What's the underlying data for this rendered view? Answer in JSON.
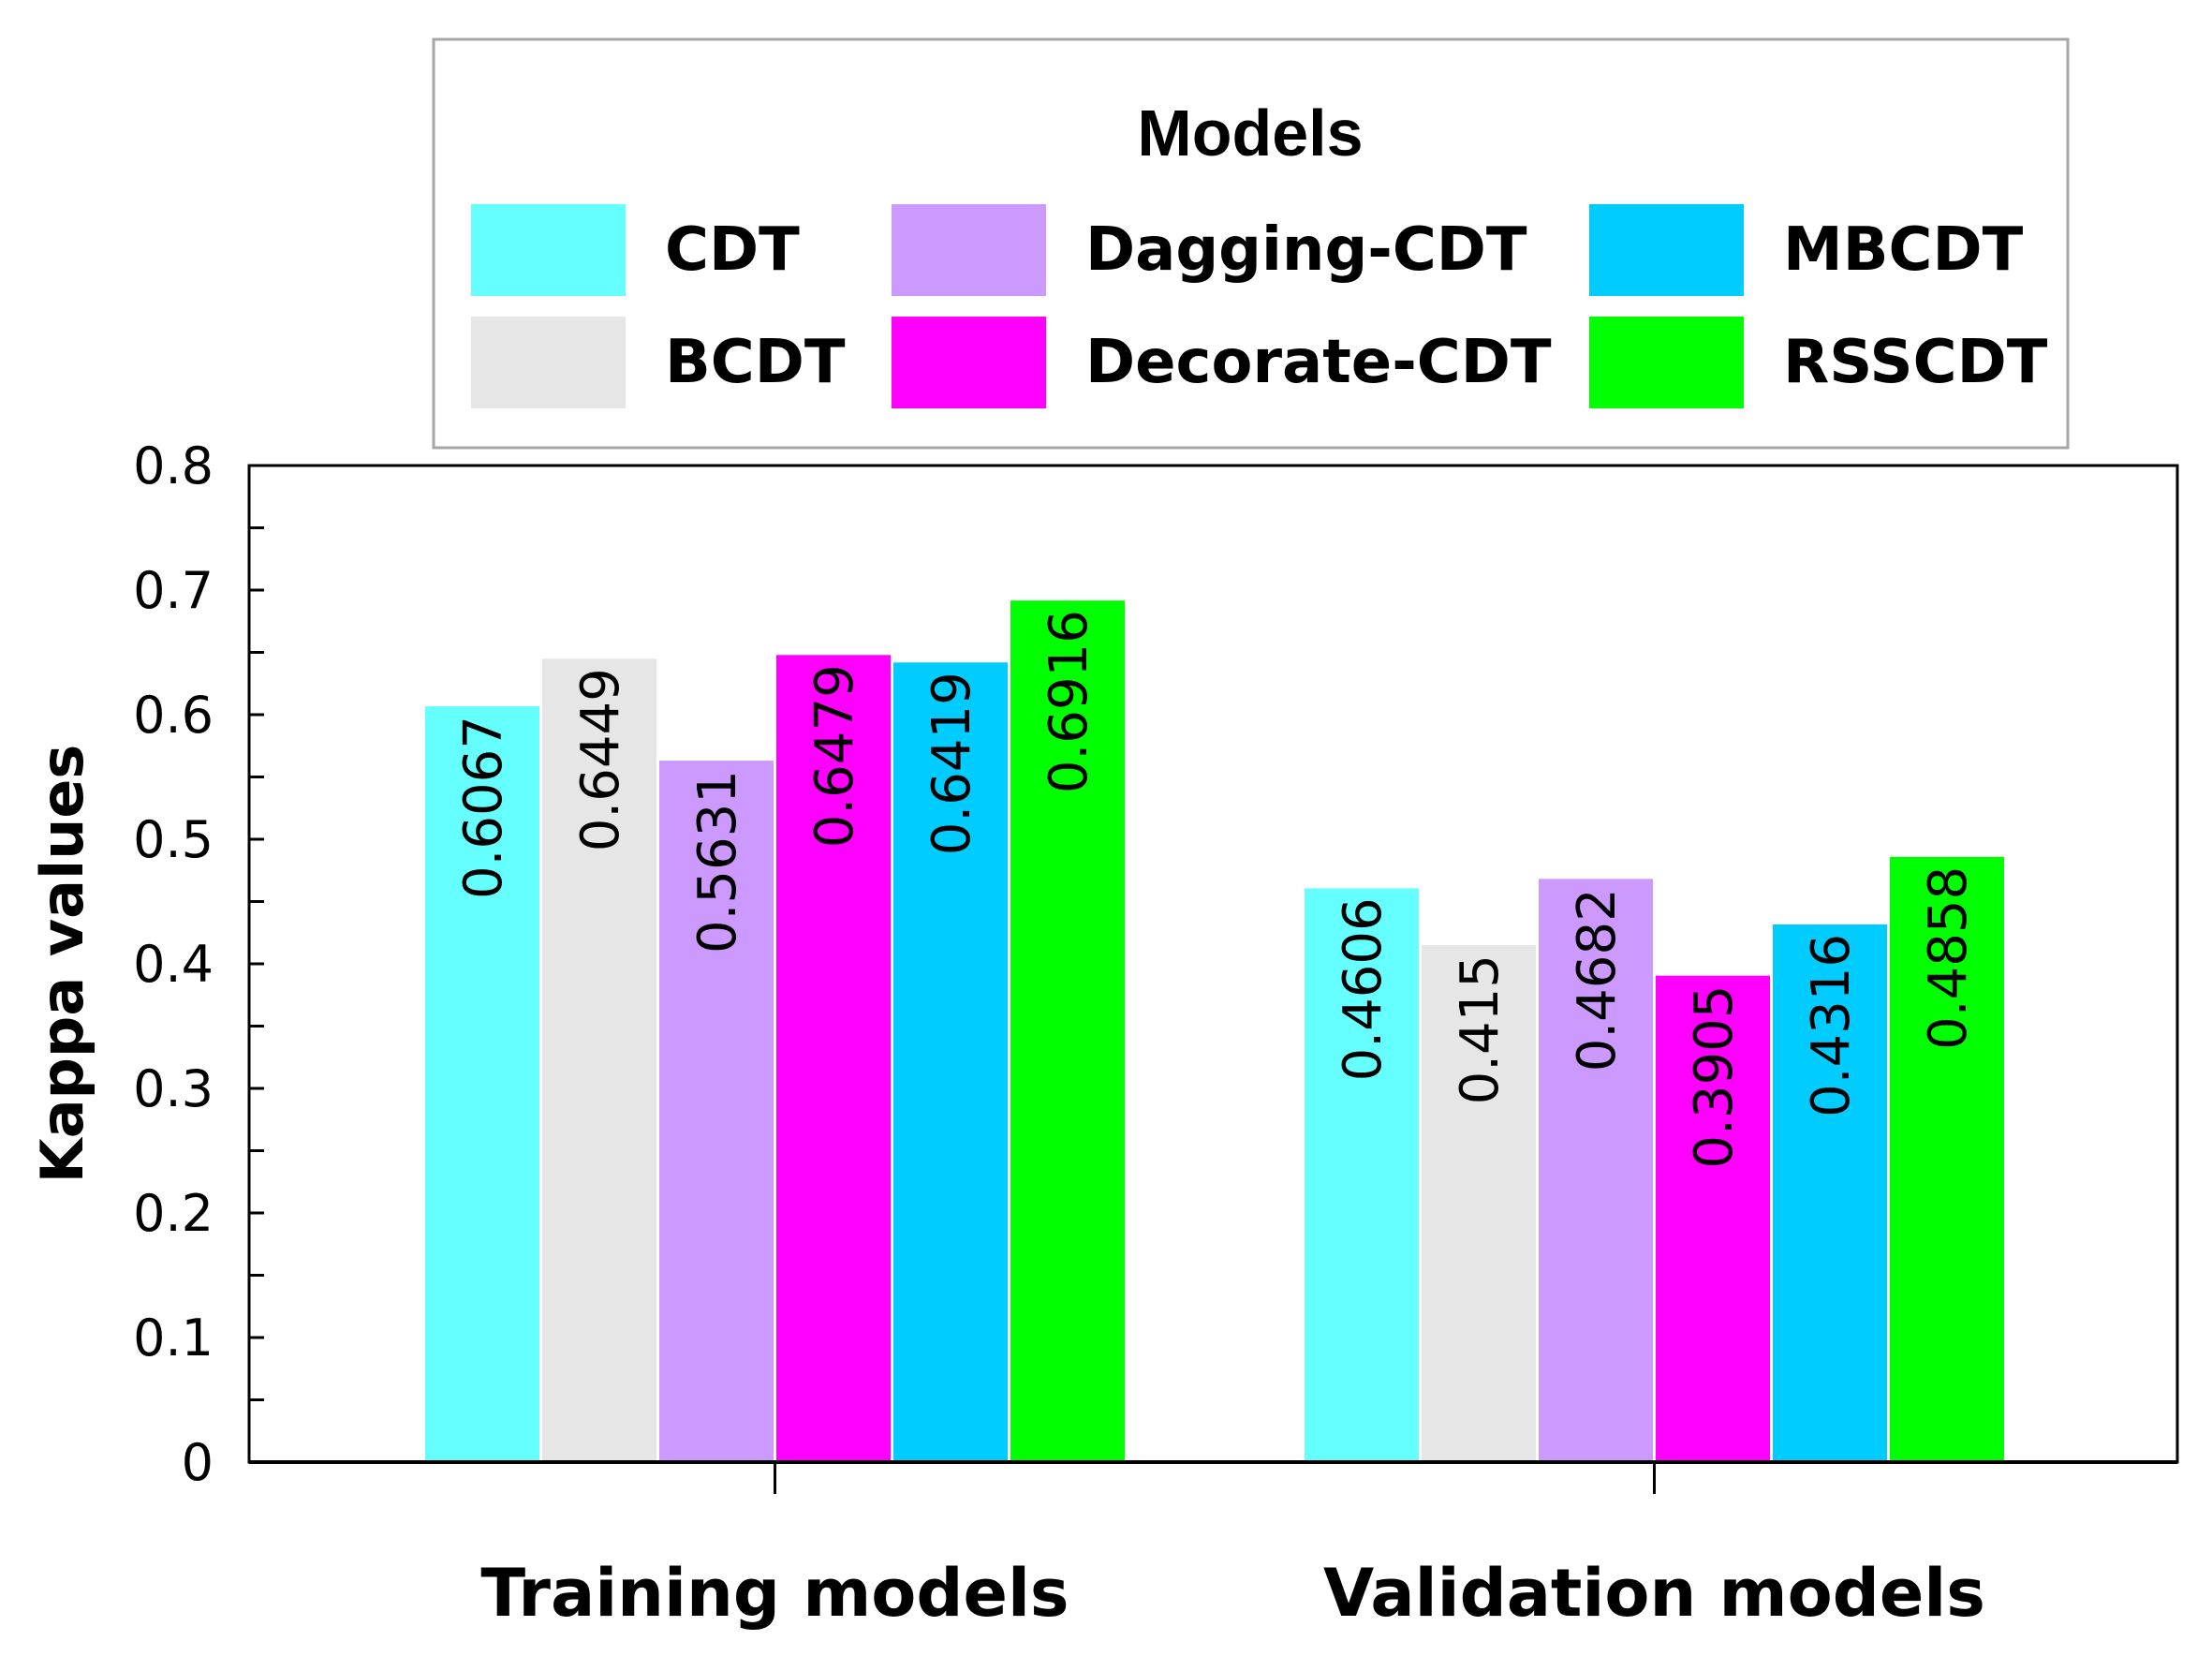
{
  "chart_data": {
    "type": "bar",
    "title": "",
    "xlabel": "",
    "ylabel": "Kappa values",
    "ylim": [
      0,
      0.8
    ],
    "yticks": [
      "0",
      "0.1",
      "0.2",
      "0.3",
      "0.4",
      "0.5",
      "0.6",
      "0.7",
      "0.8"
    ],
    "categories": [
      "Training models",
      "Validation models"
    ],
    "legend": {
      "title": "Models",
      "position": "top-center"
    },
    "series": [
      {
        "name": "CDT",
        "color": "#66ffff",
        "values": [
          0.6067,
          0.4606
        ],
        "labels": [
          "0.6067",
          "0.4606"
        ]
      },
      {
        "name": "BCDT",
        "color": "#e6e6e6",
        "values": [
          0.6449,
          0.415
        ],
        "labels": [
          "0.6449",
          "0.415"
        ]
      },
      {
        "name": "Dagging-CDT",
        "color": "#cc99ff",
        "values": [
          0.5631,
          0.4682
        ],
        "labels": [
          "0.5631",
          "0.4682"
        ]
      },
      {
        "name": "Decorate-CDT",
        "color": "#ff00ff",
        "values": [
          0.6479,
          0.3905
        ],
        "labels": [
          "0.6479",
          "0.3905"
        ]
      },
      {
        "name": "MBCDT",
        "color": "#00ccff",
        "values": [
          0.6419,
          0.4316
        ],
        "labels": [
          "0.6419",
          "0.4316"
        ]
      },
      {
        "name": "RSSCDT",
        "color": "#00ff00",
        "values": [
          0.6916,
          0.4858
        ],
        "labels": [
          "0.6916",
          "0.4858"
        ]
      }
    ]
  }
}
